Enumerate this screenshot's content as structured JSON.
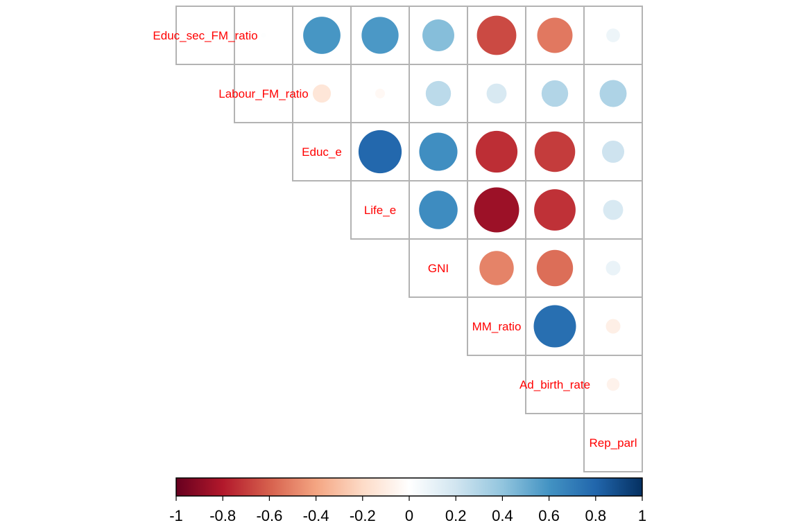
{
  "chart_data": {
    "type": "heatmap",
    "method": "circle",
    "layout": "upper-triangular",
    "variables": [
      "Educ_sec_FM_ratio",
      "Labour_FM_ratio",
      "Educ_e",
      "Life_e",
      "GNI",
      "MM_ratio",
      "Ad_birth_rate",
      "Rep_parl"
    ],
    "matrix": [
      [
        1.0,
        0.01,
        0.59,
        0.58,
        0.43,
        -0.66,
        -0.53,
        0.08
      ],
      [
        0.01,
        1.0,
        -0.14,
        -0.04,
        0.27,
        0.17,
        0.3,
        0.31
      ],
      [
        0.59,
        -0.14,
        1.0,
        0.79,
        0.62,
        -0.74,
        -0.7,
        0.21
      ],
      [
        0.58,
        -0.04,
        0.79,
        1.0,
        0.63,
        -0.86,
        -0.73,
        0.17
      ],
      [
        0.43,
        0.27,
        0.62,
        0.63,
        1.0,
        -0.5,
        -0.56,
        0.09
      ],
      [
        -0.66,
        0.17,
        -0.74,
        -0.86,
        -0.5,
        1.0,
        0.76,
        -0.09
      ],
      [
        -0.53,
        0.3,
        -0.7,
        -0.73,
        -0.56,
        0.76,
        1.0,
        -0.07
      ],
      [
        0.08,
        0.31,
        0.21,
        0.17,
        0.09,
        -0.09,
        -0.07,
        1.0
      ]
    ],
    "colorbar": {
      "range": [
        -1,
        1
      ],
      "tick_labels": [
        "-1",
        "-0.8",
        "-0.6",
        "-0.4",
        "-0.2",
        "0",
        "0.2",
        "0.4",
        "0.6",
        "0.8",
        "1"
      ],
      "colors": [
        "#67001F",
        "#B2182B",
        "#D6604D",
        "#F4A582",
        "#FDDBC7",
        "#FFFFFF",
        "#D1E5F0",
        "#92C5DE",
        "#4393C3",
        "#2166AC",
        "#053061"
      ]
    },
    "label_color": "#FF0000",
    "grid_color": "#B3B3B3"
  }
}
